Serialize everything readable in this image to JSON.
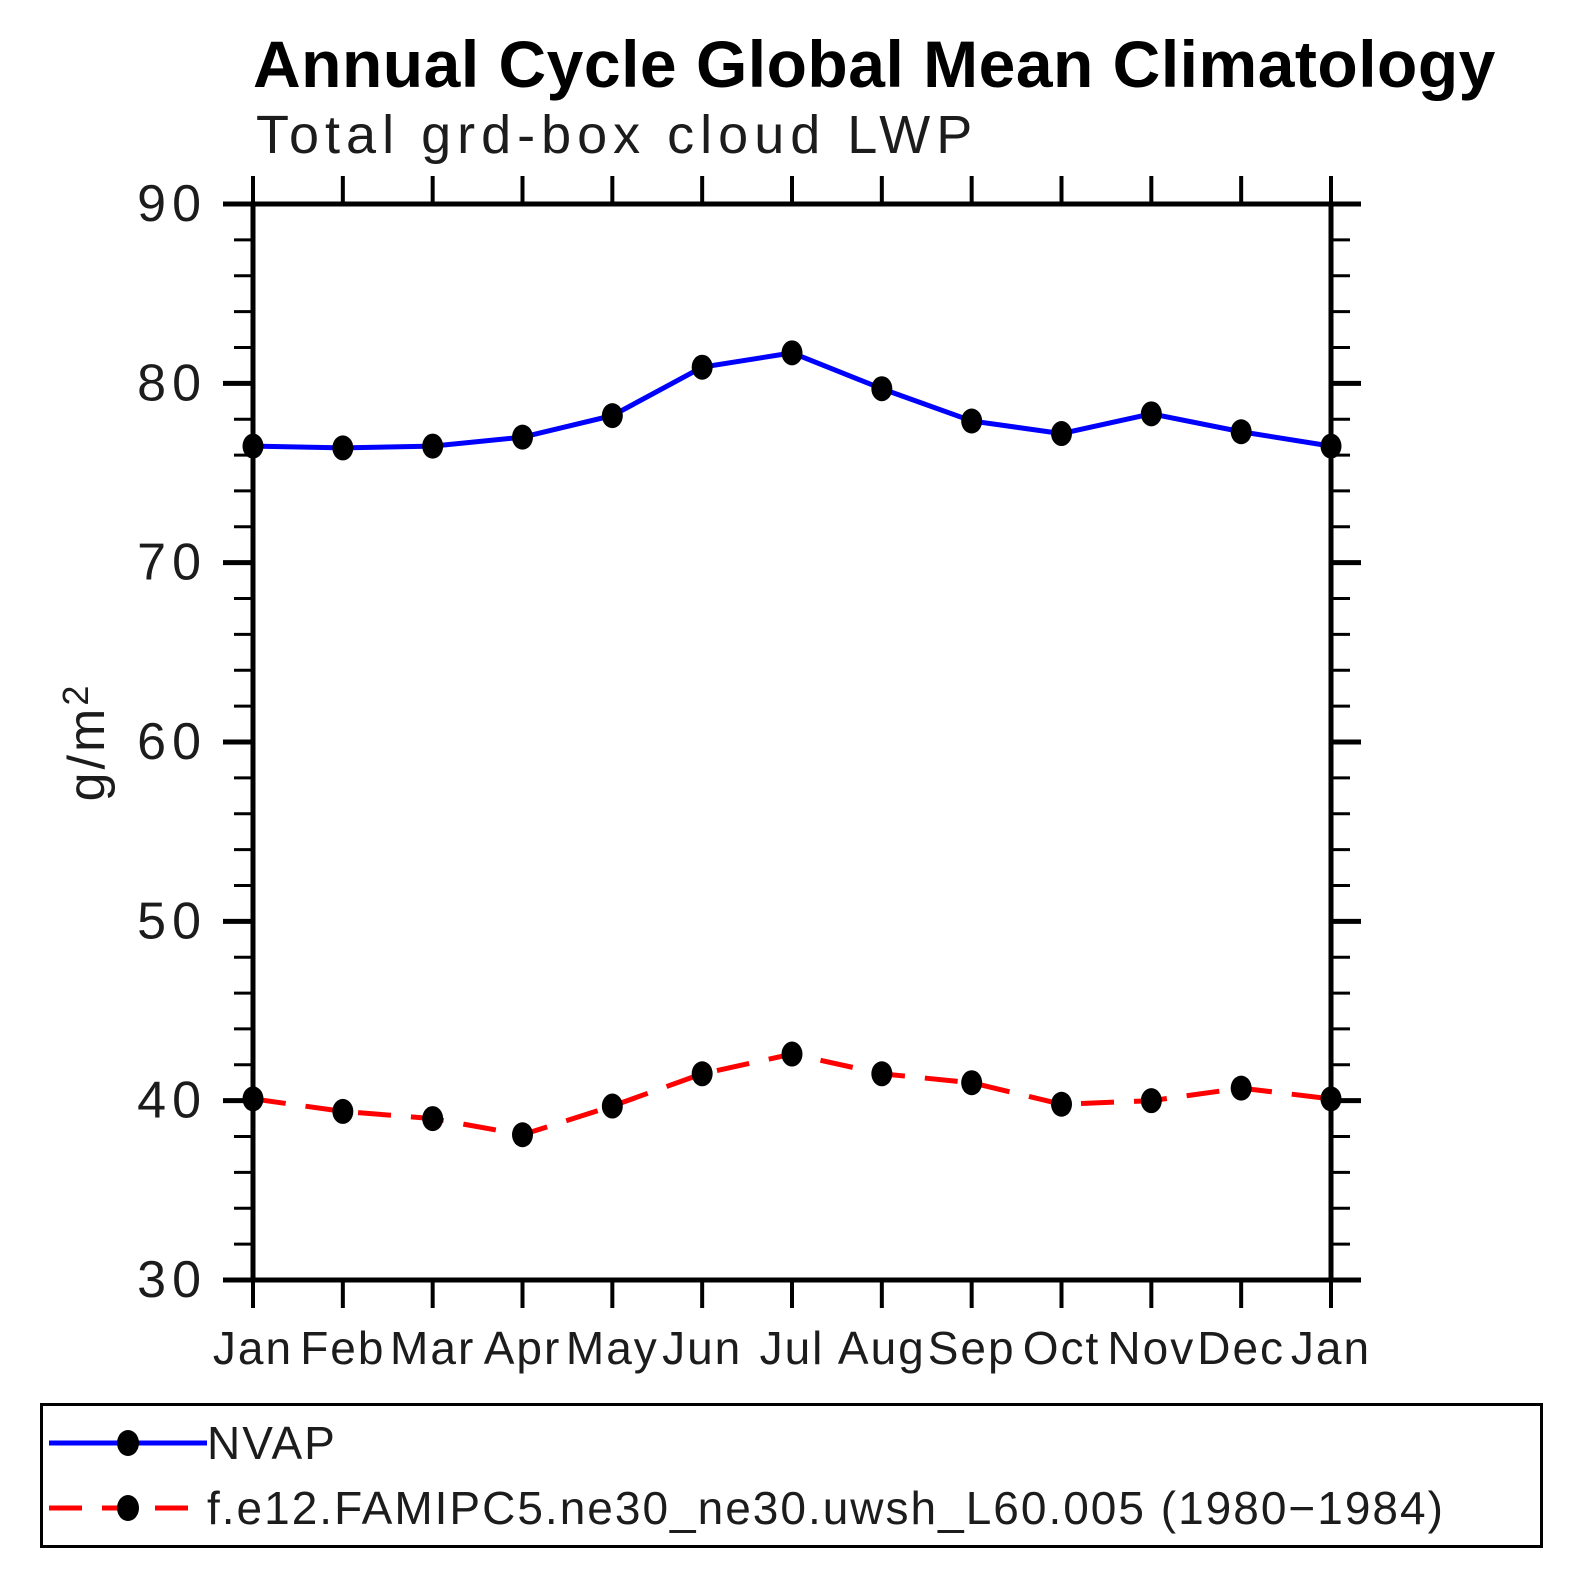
{
  "page": {
    "background": "#ffffff"
  },
  "chart_data": {
    "type": "line",
    "title": "Annual Cycle Global Mean Climatology",
    "subtitle": "Total grd-box cloud LWP",
    "ylabel": "g/m²",
    "xlabel": "",
    "x": [
      "Jan",
      "Feb",
      "Mar",
      "Apr",
      "May",
      "Jun",
      "Jul",
      "Aug",
      "Sep",
      "Oct",
      "Nov",
      "Dec",
      "Jan"
    ],
    "ylim": [
      30,
      90
    ],
    "yticks": [
      30,
      40,
      50,
      60,
      70,
      80,
      90
    ],
    "ytick_major": 10,
    "ytick_minor": 2,
    "grid": false,
    "legend_position": "bottom-box",
    "series": [
      {
        "name": "NVAP",
        "color": "#0000ff",
        "line_style": "solid",
        "dash": "none",
        "marker": "filled-circle",
        "marker_color": "#000000",
        "values": [
          76.5,
          76.4,
          76.5,
          77.0,
          78.2,
          80.9,
          81.7,
          79.7,
          77.9,
          77.2,
          78.3,
          77.3,
          76.5
        ]
      },
      {
        "name": "f.e12.FAMIPC5.ne30_ne30.uwsh_L60.005 (1980−1984)",
        "color": "#ff0000",
        "line_style": "dashed",
        "dash": "33 20",
        "marker": "filled-circle",
        "marker_color": "#000000",
        "values": [
          40.1,
          39.4,
          39.0,
          38.1,
          39.7,
          41.5,
          42.6,
          41.5,
          41.0,
          39.8,
          40.0,
          40.7,
          40.1
        ]
      }
    ]
  }
}
